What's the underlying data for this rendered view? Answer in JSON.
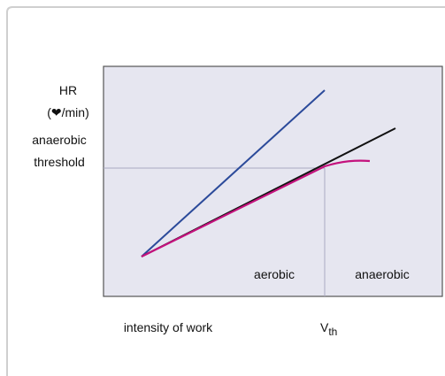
{
  "y_axis": {
    "title": "HR",
    "unit": "(❤/min)"
  },
  "threshold_label": [
    "anaerobic",
    "threshold"
  ],
  "zones": {
    "left": "aerobic",
    "right": "anaerobic"
  },
  "x_axis": {
    "title": "intensity of work",
    "threshold_main": "V",
    "threshold_sub": "th"
  }
}
